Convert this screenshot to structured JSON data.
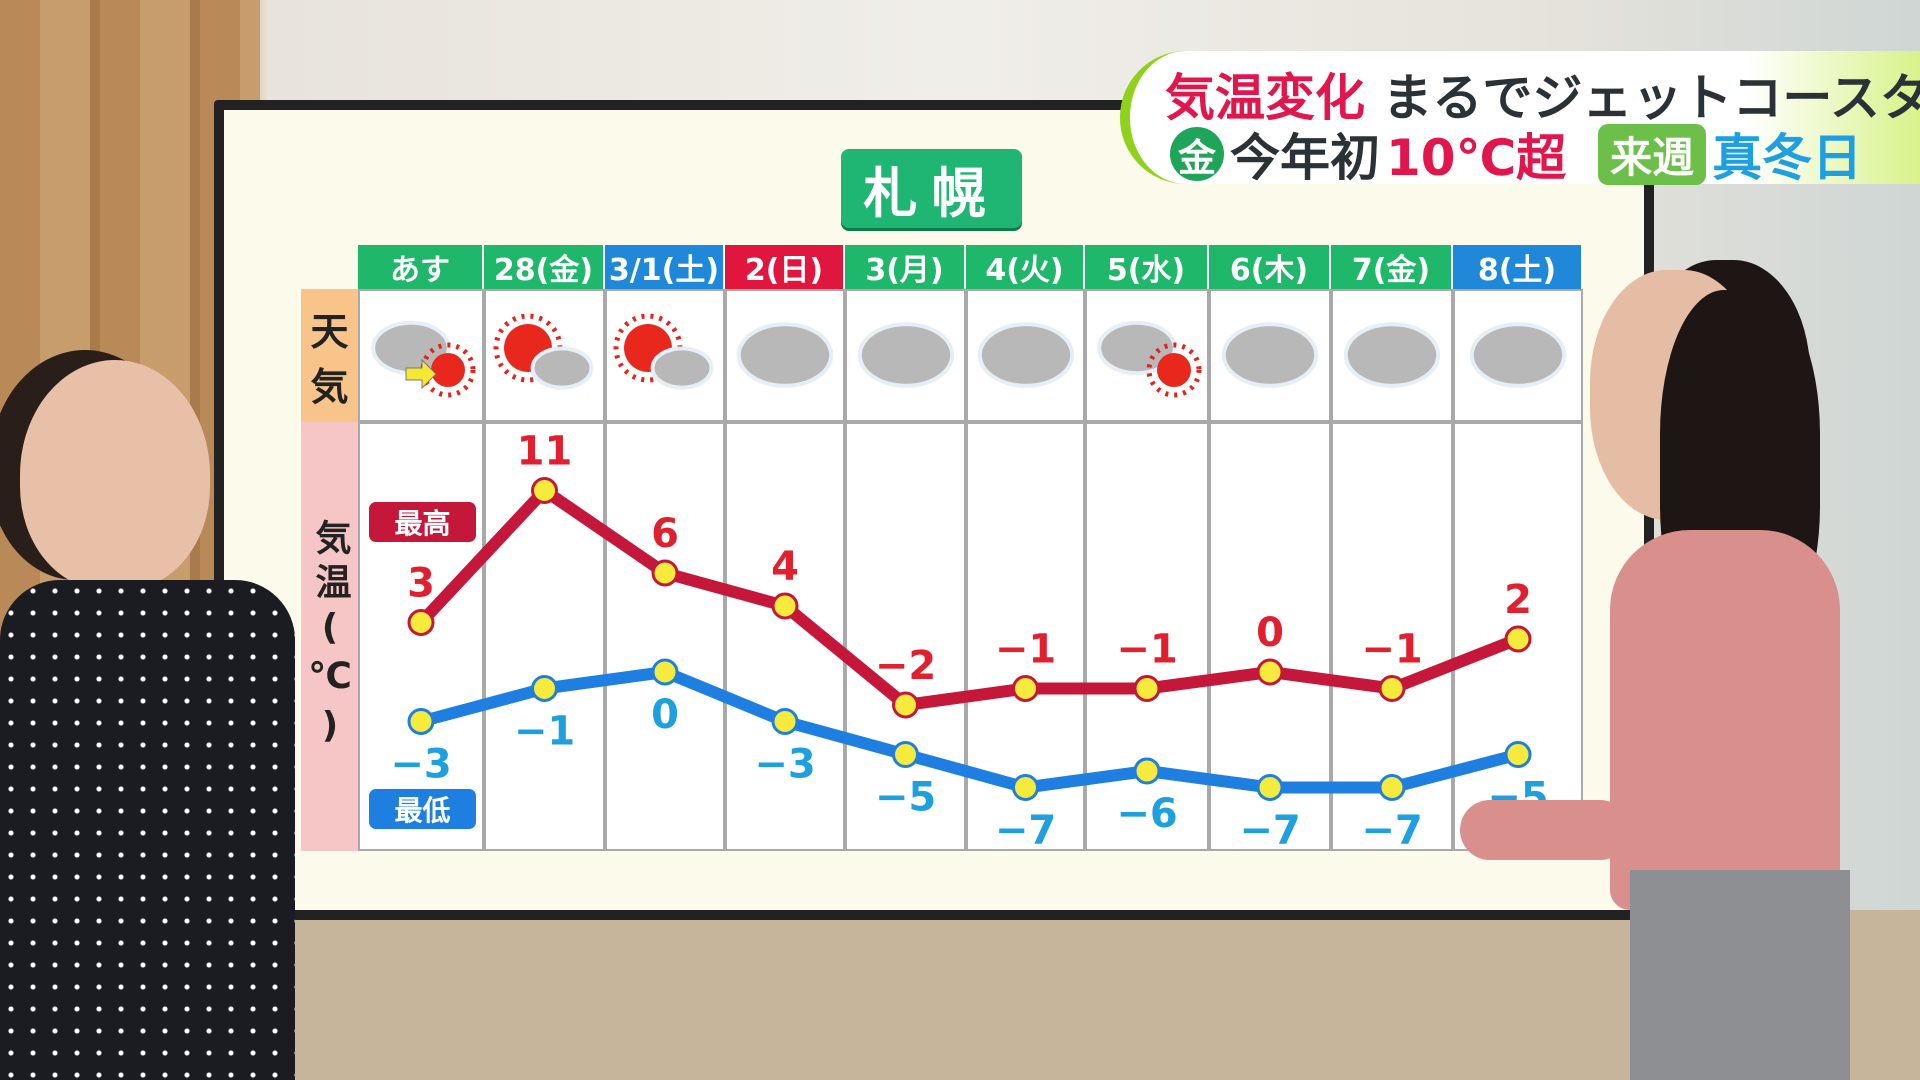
{
  "banner": {
    "line1_red": "気温変化",
    "line1_dark": "まるでジェットコースター",
    "badge_fri": "金",
    "line2_dark": "今年初",
    "line2_red": "10℃超",
    "badge_next": "来週",
    "line2_blue": "真冬日"
  },
  "board": {
    "city": "札幌",
    "weather_label": [
      "天",
      "気"
    ],
    "temp_label": [
      "気",
      "温",
      "(℃)"
    ],
    "legend_high": "最高",
    "legend_low": "最低"
  },
  "chart_data": {
    "type": "line",
    "categories": [
      "あす",
      "28(金)",
      "3/1(土)",
      "2(日)",
      "3(月)",
      "4(火)",
      "5(水)",
      "6(木)",
      "7(金)",
      "8(土)"
    ],
    "header_colors": [
      "#1fb86a",
      "#1fb86a",
      "#1f88d8",
      "#e0163f",
      "#1fb86a",
      "#1fb86a",
      "#1fb86a",
      "#1fb86a",
      "#1fb86a",
      "#1f88d8"
    ],
    "weather": [
      "cloudy-then-sunny",
      "sunny-then-cloudy",
      "sunny-then-cloudy",
      "cloudy",
      "cloudy",
      "cloudy",
      "cloudy-then-sunny",
      "cloudy",
      "cloudy",
      "cloudy"
    ],
    "series": [
      {
        "name": "最高",
        "color": "#c4173a",
        "label_color": "#e0202e",
        "values": [
          3,
          11,
          6,
          4,
          -2,
          -1,
          -1,
          0,
          -1,
          2
        ]
      },
      {
        "name": "最低",
        "color": "#1e7fe0",
        "label_color": "#1ea0e0",
        "values": [
          -3,
          -1,
          0,
          -3,
          -5,
          -7,
          -6,
          -7,
          -7,
          -5
        ]
      }
    ],
    "ylabel": "気温(℃)"
  }
}
